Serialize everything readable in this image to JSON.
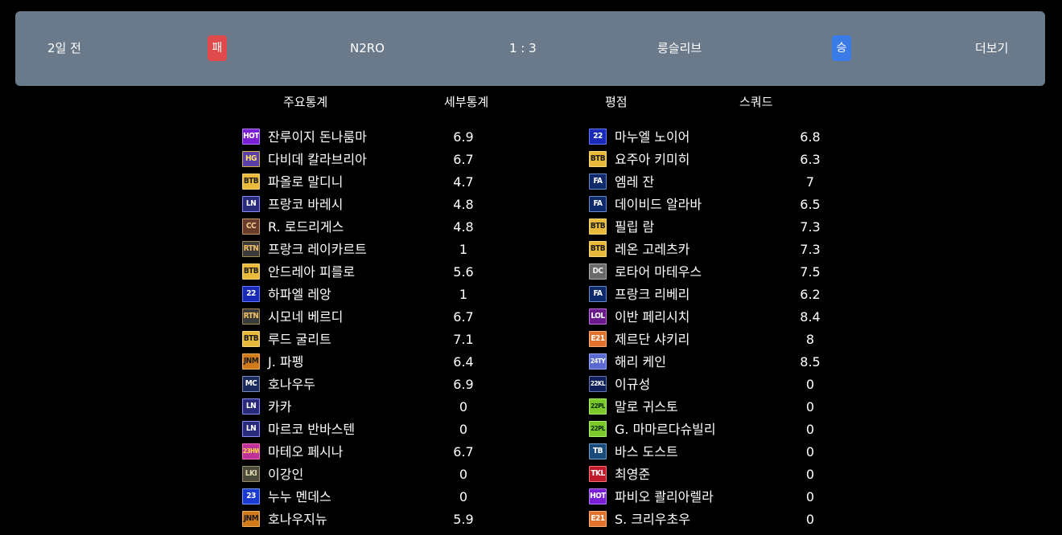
{
  "match": {
    "time_ago": "2일 전",
    "my_result": "패",
    "my_team": "N2RO",
    "score": "1 : 3",
    "opponent_team": "룽슬리브",
    "opponent_result": "승",
    "more": "더보기",
    "colors": {
      "header_bg": "#6b7a8b",
      "loss": "#e04a4a",
      "win": "#3a7be8"
    }
  },
  "tabs": [
    "주요통계",
    "세부통계",
    "평점",
    "스쿼드"
  ],
  "left_players": [
    {
      "season": "HOT",
      "name": "잔루이지 돈나룸마",
      "rating": "6.9"
    },
    {
      "season": "HG",
      "name": "다비데 칼라브리아",
      "rating": "6.7"
    },
    {
      "season": "BTB",
      "name": "파올로 말디니",
      "rating": "4.7"
    },
    {
      "season": "LN",
      "name": "프랑코 바레시",
      "rating": "4.8"
    },
    {
      "season": "CC",
      "name": "R. 로드리게스",
      "rating": "4.8"
    },
    {
      "season": "RTN",
      "name": "프랑크 레이카르트",
      "rating": "1"
    },
    {
      "season": "BTB",
      "name": "안드레아 피를로",
      "rating": "5.6"
    },
    {
      "season": "22",
      "name": "하파엘 레앙",
      "rating": "1"
    },
    {
      "season": "RTN",
      "name": "시모네 베르디",
      "rating": "6.7"
    },
    {
      "season": "BTB",
      "name": "루드 굴리트",
      "rating": "7.1"
    },
    {
      "season": "JNM",
      "name": "J. 파펭",
      "rating": "6.4"
    },
    {
      "season": "MC",
      "name": "호나우두",
      "rating": "6.9"
    },
    {
      "season": "LN",
      "name": "카카",
      "rating": "0"
    },
    {
      "season": "LN",
      "name": "마르코 반바스텐",
      "rating": "0"
    },
    {
      "season": "23HW",
      "name": "마테오 페시나",
      "rating": "6.7"
    },
    {
      "season": "LKI",
      "name": "이강인",
      "rating": "0"
    },
    {
      "season": "23",
      "name": "누누 멘데스",
      "rating": "0"
    },
    {
      "season": "JNM",
      "name": "호나우지뉴",
      "rating": "5.9"
    }
  ],
  "right_players": [
    {
      "season": "22",
      "name": "마누엘 노이어",
      "rating": "6.8"
    },
    {
      "season": "BTB",
      "name": "요주아 키미히",
      "rating": "6.3"
    },
    {
      "season": "FA",
      "name": "엠레 잔",
      "rating": "7"
    },
    {
      "season": "FA",
      "name": "데이비드 알라바",
      "rating": "6.5"
    },
    {
      "season": "BTB",
      "name": "필립 람",
      "rating": "7.3"
    },
    {
      "season": "BTB",
      "name": "레온 고레츠카",
      "rating": "7.3"
    },
    {
      "season": "DC",
      "name": "로타어 마테우스",
      "rating": "7.5"
    },
    {
      "season": "FA",
      "name": "프랑크 리베리",
      "rating": "6.2"
    },
    {
      "season": "LOL",
      "name": "이반 페리시치",
      "rating": "8.4"
    },
    {
      "season": "E21",
      "name": "제르단 샤키리",
      "rating": "8"
    },
    {
      "season": "24TY",
      "name": "해리 케인",
      "rating": "8.5"
    },
    {
      "season": "22KL",
      "name": "이규성",
      "rating": "0"
    },
    {
      "season": "22PL",
      "name": "말로 귀스토",
      "rating": "0"
    },
    {
      "season": "22PL",
      "name": "G. 마마르다슈빌리",
      "rating": "0"
    },
    {
      "season": "TB",
      "name": "바스 도스트",
      "rating": "0"
    },
    {
      "season": "TKL",
      "name": "최영준",
      "rating": "0"
    },
    {
      "season": "HOT",
      "name": "파비오 콸리아렐라",
      "rating": "0"
    },
    {
      "season": "E21",
      "name": "S. 크리우초우",
      "rating": "0"
    }
  ],
  "season_styles": {
    "HOT": {
      "bg": "#7a1fd6",
      "fg": "#ffffff",
      "border": "#b47cff"
    },
    "HG": {
      "bg": "#5b3fa8",
      "fg": "#ffe066",
      "border": "#d4b24a"
    },
    "BTB": {
      "bg": "#e8b93a",
      "fg": "#1a1a1a",
      "border": "#f5d67a"
    },
    "LN": {
      "bg": "#2a2a7a",
      "fg": "#ffffff",
      "border": "#8c8cff"
    },
    "CC": {
      "bg": "#6a3a2a",
      "fg": "#f0d090",
      "border": "#c89a6a"
    },
    "RTN": {
      "bg": "#3a3a3a",
      "fg": "#f0c060",
      "border": "#a08a50"
    },
    "22": {
      "bg": "#1a2ab8",
      "fg": "#ffffff",
      "border": "#6a7aff"
    },
    "JNM": {
      "bg": "#d07a1a",
      "fg": "#1a1a1a",
      "border": "#f0b060"
    },
    "MC": {
      "bg": "#1a2a5a",
      "fg": "#ffffff",
      "border": "#7a8aba"
    },
    "23HW": {
      "bg": "#c0309a",
      "fg": "#ffe040",
      "border": "#ff70c0"
    },
    "LKI": {
      "bg": "#4a4a3a",
      "fg": "#e0d8b0",
      "border": "#9a9070"
    },
    "23": {
      "bg": "#1a3ad0",
      "fg": "#ffffff",
      "border": "#7a9aff"
    },
    "FA": {
      "bg": "#0f2a6a",
      "fg": "#ffffff",
      "border": "#6a8ad0"
    },
    "DC": {
      "bg": "#6a6a6a",
      "fg": "#f0f0f0",
      "border": "#b0b0b0"
    },
    "LOL": {
      "bg": "#6a1a8a",
      "fg": "#ffffff",
      "border": "#c070e0"
    },
    "E21": {
      "bg": "#e0702a",
      "fg": "#ffffff",
      "border": "#ffb070"
    },
    "24TY": {
      "bg": "#5a6ad0",
      "fg": "#ffffff",
      "border": "#9aa8ff"
    },
    "22KL": {
      "bg": "#0f1f5a",
      "fg": "#ffffff",
      "border": "#6a7ab0"
    },
    "22PL": {
      "bg": "#7ac82a",
      "fg": "#0a2a0a",
      "border": "#b0f070"
    },
    "TB": {
      "bg": "#1a4a7a",
      "fg": "#ffffff",
      "border": "#70a0d0"
    },
    "TKL": {
      "bg": "#c01a2a",
      "fg": "#ffffff",
      "border": "#ff707a"
    }
  }
}
